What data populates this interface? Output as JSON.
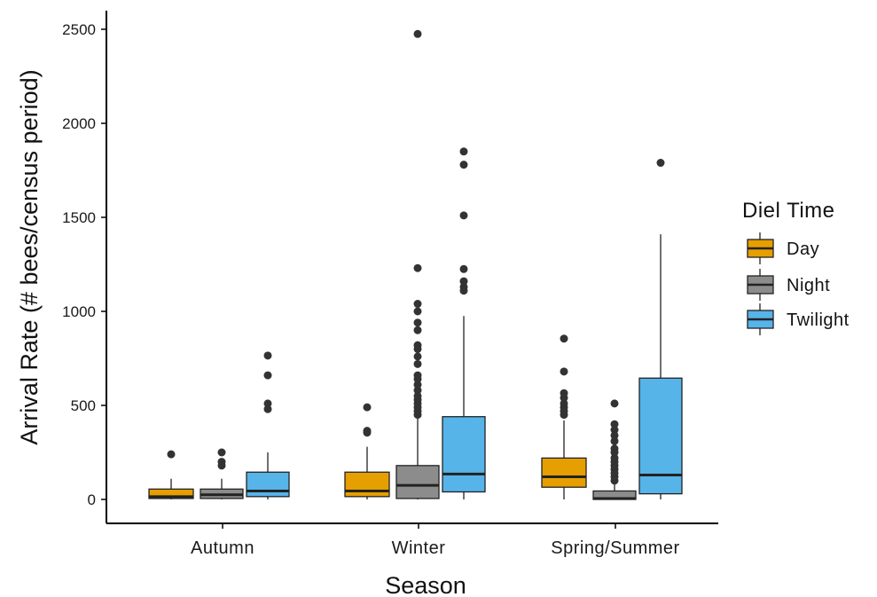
{
  "chart_data": {
    "type": "box",
    "title": "",
    "xlabel": "Season",
    "ylabel": "Arrival Rate (# bees/census period)",
    "ylim": [
      -130,
      2640
    ],
    "yticks": [
      0,
      500,
      1000,
      1500,
      2000,
      2500
    ],
    "categories": [
      "Autumn",
      "Winter",
      "Spring/Summer"
    ],
    "legend": {
      "title": "Diel Time",
      "position": "right"
    },
    "grid": false,
    "series": [
      {
        "name": "Day",
        "color": "#E69F00",
        "boxes": [
          {
            "whisker_low": 0,
            "q1": 5,
            "median": 15,
            "q3": 55,
            "whisker_high": 110,
            "outliers": [
              240
            ]
          },
          {
            "whisker_low": 0,
            "q1": 15,
            "median": 45,
            "q3": 145,
            "whisker_high": 280,
            "outliers": [
              355,
              365,
              490
            ]
          },
          {
            "whisker_low": 0,
            "q1": 65,
            "median": 120,
            "q3": 220,
            "whisker_high": 420,
            "outliers": [
              450,
              470,
              490,
              510,
              540,
              565,
              680,
              855
            ]
          }
        ]
      },
      {
        "name": "Night",
        "color": "#8C8C8C",
        "boxes": [
          {
            "whisker_low": 0,
            "q1": 5,
            "median": 25,
            "q3": 55,
            "whisker_high": 110,
            "outliers": [
              180,
              200,
              250
            ]
          },
          {
            "whisker_low": 0,
            "q1": 5,
            "median": 75,
            "q3": 180,
            "whisker_high": 430,
            "outliers": [
              450,
              470,
              490,
              510,
              530,
              550,
              580,
              610,
              640,
              660,
              720,
              760,
              800,
              820,
              900,
              940,
              1000,
              1040,
              1230,
              2475
            ]
          },
          {
            "whisker_low": 0,
            "q1": 0,
            "median": 5,
            "q3": 45,
            "whisker_high": 90,
            "outliers": [
              100,
              120,
              140,
              160,
              180,
              200,
              220,
              250,
              270,
              310,
              340,
              370,
              400,
              510
            ]
          }
        ]
      },
      {
        "name": "Twilight",
        "color": "#56B4E9",
        "boxes": [
          {
            "whisker_low": 0,
            "q1": 15,
            "median": 45,
            "q3": 145,
            "whisker_high": 250,
            "outliers": [
              480,
              510,
              660,
              765
            ]
          },
          {
            "whisker_low": 0,
            "q1": 40,
            "median": 135,
            "q3": 440,
            "whisker_high": 975,
            "outliers": [
              1110,
              1130,
              1160,
              1225,
              1510,
              1780,
              1850
            ]
          },
          {
            "whisker_low": 0,
            "q1": 30,
            "median": 130,
            "q3": 645,
            "whisker_high": 1410,
            "outliers": [
              1790
            ]
          }
        ]
      }
    ]
  }
}
